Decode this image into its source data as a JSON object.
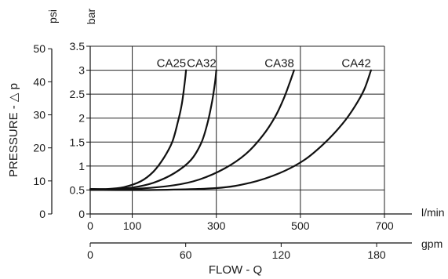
{
  "chart_data": {
    "type": "line",
    "title": "",
    "xlabel": "FLOW - Q",
    "ylabel": "PRESSURE - △ p",
    "x_unit_primary": "l/min",
    "x_unit_secondary": "gpm",
    "y_unit_primary": "bar",
    "y_unit_secondary": "psi",
    "xlim": [
      0,
      700
    ],
    "ylim": [
      0,
      3.5
    ],
    "grid": true,
    "x_ticks": [
      0,
      100,
      300,
      500,
      700
    ],
    "x_tick_labels": [
      "0",
      "100",
      "300",
      "500",
      "700"
    ],
    "y_ticks": [
      0,
      0.5,
      1,
      1.5,
      2,
      2.5,
      3,
      3.5
    ],
    "y_tick_labels": [
      "0",
      "0.5",
      "1",
      "1.5",
      "2",
      "2.5",
      "3",
      "3.5"
    ],
    "psi_ticks": [
      0,
      10,
      20,
      30,
      40,
      50
    ],
    "psi_tick_labels": [
      "0",
      "10",
      "20",
      "30",
      "40",
      "50"
    ],
    "gpm_ticks": [
      0,
      60,
      120,
      180
    ],
    "gpm_tick_labels": [
      "0",
      "60",
      "120",
      "180"
    ],
    "series": [
      {
        "name": "CA25",
        "x": [
          0,
          40,
          80,
          120,
          150,
          175,
          195,
          208,
          218,
          225,
          228
        ],
        "y": [
          0.52,
          0.52,
          0.56,
          0.68,
          0.88,
          1.17,
          1.5,
          1.9,
          2.3,
          2.75,
          3.0
        ]
      },
      {
        "name": "CA32",
        "x": [
          0,
          50,
          100,
          150,
          200,
          240,
          265,
          280,
          290,
          297,
          300
        ],
        "y": [
          0.52,
          0.52,
          0.55,
          0.65,
          0.85,
          1.13,
          1.5,
          1.93,
          2.35,
          2.75,
          3.0
        ]
      },
      {
        "name": "CA38",
        "x": [
          0,
          100,
          200,
          260,
          320,
          370,
          410,
          440,
          460,
          475,
          485
        ],
        "y": [
          0.5,
          0.52,
          0.6,
          0.72,
          0.95,
          1.25,
          1.63,
          2.03,
          2.4,
          2.75,
          3.0
        ]
      },
      {
        "name": "CA42",
        "x": [
          0,
          150,
          300,
          380,
          450,
          510,
          560,
          600,
          630,
          652,
          668
        ],
        "y": [
          0.5,
          0.5,
          0.54,
          0.65,
          0.85,
          1.13,
          1.5,
          1.88,
          2.25,
          2.6,
          3.0
        ]
      }
    ]
  }
}
